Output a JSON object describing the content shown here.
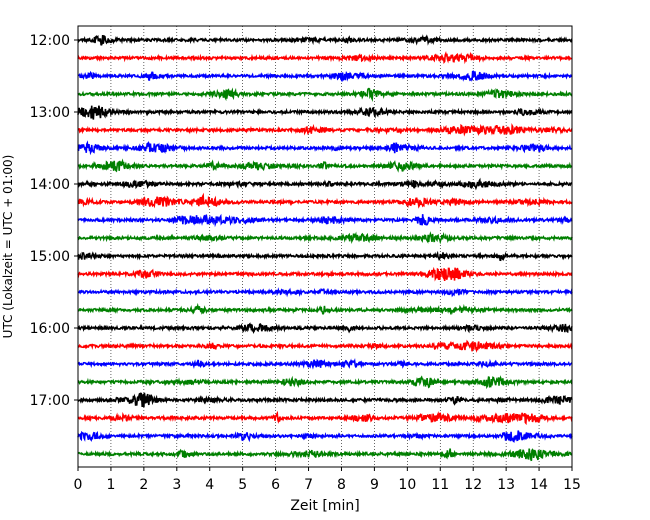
{
  "chart_data": {
    "type": "line",
    "title": "",
    "xlabel": "Zeit  [min]",
    "ylabel": "UTC (Lokalzeit = UTC + 01:00)",
    "xlim": [
      0,
      15
    ],
    "x_ticks": [
      0,
      1,
      2,
      3,
      4,
      5,
      6,
      7,
      8,
      9,
      10,
      11,
      12,
      13,
      14,
      15
    ],
    "y_tick_labels": [
      "12:00",
      "13:00",
      "14:00",
      "15:00",
      "16:00",
      "17:00"
    ],
    "grid": "vertical dotted",
    "trace_interval_minutes": 15,
    "traces": [
      {
        "start": "12:00",
        "color": "#000000"
      },
      {
        "start": "12:15",
        "color": "#ff0000"
      },
      {
        "start": "12:30",
        "color": "#0000ff"
      },
      {
        "start": "12:45",
        "color": "#008000"
      },
      {
        "start": "13:00",
        "color": "#000000"
      },
      {
        "start": "13:15",
        "color": "#ff0000"
      },
      {
        "start": "13:30",
        "color": "#0000ff"
      },
      {
        "start": "13:45",
        "color": "#008000"
      },
      {
        "start": "14:00",
        "color": "#000000"
      },
      {
        "start": "14:15",
        "color": "#ff0000"
      },
      {
        "start": "14:30",
        "color": "#0000ff"
      },
      {
        "start": "14:45",
        "color": "#008000"
      },
      {
        "start": "15:00",
        "color": "#000000"
      },
      {
        "start": "15:15",
        "color": "#ff0000"
      },
      {
        "start": "15:30",
        "color": "#0000ff"
      },
      {
        "start": "15:45",
        "color": "#008000"
      },
      {
        "start": "16:00",
        "color": "#000000"
      },
      {
        "start": "16:15",
        "color": "#ff0000"
      },
      {
        "start": "16:30",
        "color": "#0000ff"
      },
      {
        "start": "16:45",
        "color": "#008000"
      },
      {
        "start": "17:00",
        "color": "#000000"
      },
      {
        "start": "17:15",
        "color": "#ff0000"
      },
      {
        "start": "17:30",
        "color": "#0000ff"
      },
      {
        "start": "17:45",
        "color": "#008000"
      }
    ]
  }
}
